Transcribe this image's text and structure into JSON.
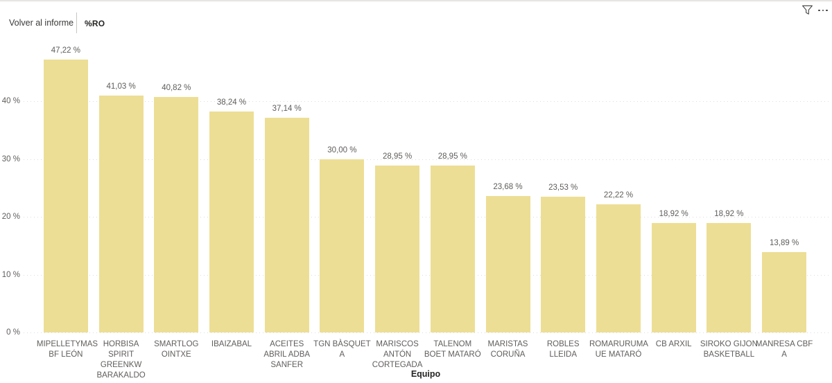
{
  "header": {
    "back_label": "Volver al informe",
    "title": "%RO",
    "filter_icon": "funnel-icon",
    "more_icon": "ellipsis-icon"
  },
  "chart_data": {
    "type": "bar",
    "title": "%RO",
    "xlabel": "Equipo",
    "ylabel": "",
    "ylim": [
      0,
      50
    ],
    "grid": true,
    "legend": "none",
    "bar_color": "#EDDE95",
    "label_color": "#5F5D5B",
    "tick_color": "#605E5C",
    "axis_title_color": "#252423",
    "gridline_color": "#DCDCDC",
    "yticks": [
      {
        "value": 0,
        "label": "0 %"
      },
      {
        "value": 10,
        "label": "10 %"
      },
      {
        "value": 20,
        "label": "20 %"
      },
      {
        "value": 30,
        "label": "30 %"
      },
      {
        "value": 40,
        "label": "40 %"
      }
    ],
    "categories": [
      "MIPELLETYMAS BF LEÓN",
      "HORBISA SPIRIT GREENKW BARAKALDO",
      "SMARTLOG OINTXE",
      "IBAIZABAL",
      "ACEITES ABRIL ADBA SANFER",
      "TGN BÀSQUET A",
      "MARISCOS ANTÓN CORTEGADA",
      "TALENOM BOET MATARÓ",
      "MARISTAS CORUÑA",
      "ROBLES LLEIDA",
      "ROMARURUMA UE MATARÓ",
      "CB ARXIL",
      "SIROKO GIJON BASKETBALL",
      "MANRESA CBF A"
    ],
    "values": [
      47.22,
      41.03,
      40.82,
      38.24,
      37.14,
      30.0,
      28.95,
      28.95,
      23.68,
      23.53,
      22.22,
      18.92,
      18.92,
      13.89
    ],
    "value_labels": [
      "47,22 %",
      "41,03 %",
      "40,82 %",
      "38,24 %",
      "37,14 %",
      "30,00 %",
      "28,95 %",
      "28,95 %",
      "23,68 %",
      "23,53 %",
      "22,22 %",
      "18,92 %",
      "18,92 %",
      "13,89 %"
    ]
  }
}
